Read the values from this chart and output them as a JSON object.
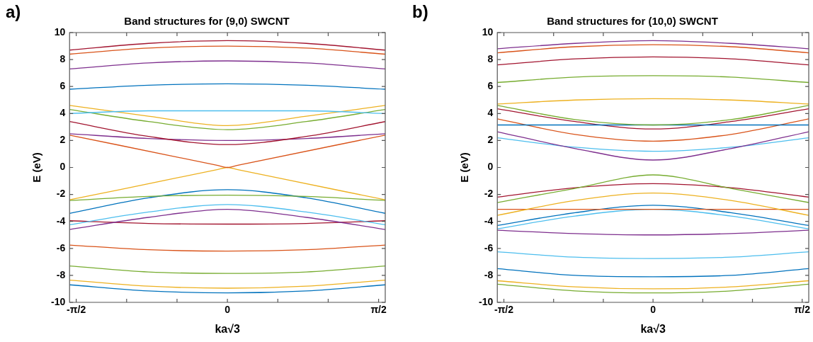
{
  "chart_data": [
    {
      "type": "line",
      "title": "Band structures for (9,0) SWCNT",
      "xlabel": "ka√3",
      "ylabel": "E (eV)",
      "annotations": [
        "a)"
      ],
      "x": [
        -1.64,
        -0.82,
        0,
        0.82,
        1.64
      ],
      "xlim": [
        -1.64,
        1.64
      ],
      "xticks": [
        {
          "value": -1.5708,
          "label": "-π/2"
        },
        {
          "value": -1.0472,
          "label": null
        },
        {
          "value": -0.5236,
          "label": null
        },
        0,
        {
          "value": 0.5236,
          "label": null
        },
        {
          "value": 1.0472,
          "label": null
        },
        {
          "value": 1.5708,
          "label": "π/2"
        }
      ],
      "ylim": [
        -10,
        10
      ],
      "yticks": [
        -10,
        -8,
        -6,
        -4,
        -2,
        0,
        2,
        4,
        6,
        8,
        10
      ],
      "legend": false,
      "series": [
        {
          "color": "#a2142f",
          "values": [
            8.7,
            9.2,
            9.4,
            9.2,
            8.7
          ]
        },
        {
          "color": "#d95319",
          "values": [
            8.4,
            8.85,
            9.0,
            8.85,
            8.4
          ]
        },
        {
          "color": "#7e2f8e",
          "values": [
            7.3,
            7.75,
            7.9,
            7.75,
            7.3
          ]
        },
        {
          "color": "#0072bd",
          "values": [
            5.8,
            6.1,
            6.2,
            6.1,
            5.8
          ]
        },
        {
          "color": "#4dbeee",
          "values": [
            4.0,
            4.2,
            4.2,
            4.2,
            4.0
          ]
        },
        {
          "color": "#edb120",
          "values": [
            4.6,
            3.8,
            3.1,
            3.8,
            4.6
          ]
        },
        {
          "color": "#77ac30",
          "values": [
            4.3,
            3.4,
            2.8,
            3.4,
            4.3
          ]
        },
        {
          "color": "#a2142f",
          "values": [
            3.4,
            2.3,
            1.7,
            2.3,
            3.4
          ]
        },
        {
          "color": "#7e2f8e",
          "values": [
            2.5,
            2.15,
            2.0,
            2.15,
            2.5
          ]
        },
        {
          "color": "#d95319",
          "x": [
            -1.64,
            -0.1,
            0,
            0.1,
            1.64
          ],
          "values": [
            2.4,
            0.15,
            0,
            0.15,
            2.4
          ]
        },
        {
          "color": "#edb120",
          "x": [
            -1.64,
            -0.1,
            0,
            0.1,
            1.64
          ],
          "values": [
            -2.4,
            -0.15,
            0,
            -0.15,
            -2.4
          ]
        },
        {
          "color": "#77ac30",
          "values": [
            -2.45,
            -2.15,
            -2.05,
            -2.15,
            -2.45
          ]
        },
        {
          "color": "#0072bd",
          "values": [
            -3.4,
            -2.25,
            -1.65,
            -2.25,
            -3.4
          ]
        },
        {
          "color": "#4dbeee",
          "values": [
            -4.25,
            -3.3,
            -2.75,
            -3.3,
            -4.25
          ]
        },
        {
          "color": "#7e2f8e",
          "values": [
            -4.6,
            -3.7,
            -3.1,
            -3.7,
            -4.6
          ]
        },
        {
          "color": "#a2142f",
          "values": [
            -3.95,
            -4.15,
            -4.2,
            -4.15,
            -3.95
          ]
        },
        {
          "color": "#d95319",
          "values": [
            -5.75,
            -6.1,
            -6.2,
            -6.1,
            -5.75
          ]
        },
        {
          "color": "#77ac30",
          "values": [
            -7.3,
            -7.75,
            -7.85,
            -7.75,
            -7.3
          ]
        },
        {
          "color": "#edb120",
          "values": [
            -8.35,
            -8.8,
            -8.95,
            -8.8,
            -8.35
          ]
        },
        {
          "color": "#0072bd",
          "values": [
            -8.7,
            -9.15,
            -9.3,
            -9.15,
            -8.7
          ]
        }
      ]
    },
    {
      "type": "line",
      "title": "Band structures for (10,0) SWCNT",
      "xlabel": "ka√3",
      "ylabel": "E (eV)",
      "annotations": [
        "b)"
      ],
      "x": [
        -1.64,
        -0.82,
        0,
        0.82,
        1.64
      ],
      "xlim": [
        -1.64,
        1.64
      ],
      "xticks": [
        {
          "value": -1.5708,
          "label": "-π/2"
        },
        {
          "value": -1.0472,
          "label": null
        },
        {
          "value": -0.5236,
          "label": null
        },
        0,
        {
          "value": 0.5236,
          "label": null
        },
        {
          "value": 1.0472,
          "label": null
        },
        {
          "value": 1.5708,
          "label": "π/2"
        }
      ],
      "ylim": [
        -10,
        10
      ],
      "yticks": [
        -10,
        -8,
        -6,
        -4,
        -2,
        0,
        2,
        4,
        6,
        8,
        10
      ],
      "legend": false,
      "series": [
        {
          "color": "#7e2f8e",
          "values": [
            8.8,
            9.2,
            9.4,
            9.2,
            8.8
          ]
        },
        {
          "color": "#d95319",
          "values": [
            8.5,
            8.95,
            9.1,
            8.95,
            8.5
          ]
        },
        {
          "color": "#a2142f",
          "values": [
            7.6,
            8.05,
            8.2,
            8.05,
            7.6
          ]
        },
        {
          "color": "#77ac30",
          "values": [
            6.3,
            6.7,
            6.8,
            6.7,
            6.3
          ]
        },
        {
          "color": "#edb120",
          "values": [
            4.7,
            5.0,
            5.1,
            5.0,
            4.7
          ]
        },
        {
          "color": "#77ac30",
          "values": [
            4.6,
            3.55,
            3.15,
            3.55,
            4.6
          ]
        },
        {
          "color": "#0072bd",
          "values": [
            3.15,
            3.15,
            3.15,
            3.15,
            3.15
          ]
        },
        {
          "color": "#a2142f",
          "values": [
            4.35,
            3.4,
            2.85,
            3.4,
            4.35
          ]
        },
        {
          "color": "#d95319",
          "values": [
            3.6,
            2.45,
            1.95,
            2.45,
            3.6
          ]
        },
        {
          "color": "#7e2f8e",
          "values": [
            2.65,
            1.4,
            0.55,
            1.4,
            2.65
          ]
        },
        {
          "color": "#4dbeee",
          "values": [
            2.2,
            1.5,
            1.2,
            1.5,
            2.2
          ]
        },
        {
          "color": "#77ac30",
          "values": [
            -2.6,
            -1.55,
            -0.55,
            -1.55,
            -2.6
          ]
        },
        {
          "color": "#a2142f",
          "values": [
            -2.2,
            -1.5,
            -1.2,
            -1.5,
            -2.2
          ]
        },
        {
          "color": "#edb120",
          "values": [
            -3.55,
            -2.45,
            -1.9,
            -2.45,
            -3.55
          ]
        },
        {
          "color": "#d95319",
          "values": [
            -3.1,
            -3.1,
            -3.1,
            -3.1,
            -3.1
          ]
        },
        {
          "color": "#0072bd",
          "values": [
            -4.3,
            -3.35,
            -2.8,
            -3.35,
            -4.3
          ]
        },
        {
          "color": "#4dbeee",
          "values": [
            -4.55,
            -3.6,
            -3.1,
            -3.6,
            -4.55
          ]
        },
        {
          "color": "#7e2f8e",
          "values": [
            -4.65,
            -4.9,
            -5.0,
            -4.9,
            -4.65
          ]
        },
        {
          "color": "#4dbeee",
          "values": [
            -6.25,
            -6.65,
            -6.75,
            -6.65,
            -6.25
          ]
        },
        {
          "color": "#0072bd",
          "values": [
            -7.5,
            -8.0,
            -8.1,
            -8.0,
            -7.5
          ]
        },
        {
          "color": "#edb120",
          "values": [
            -8.4,
            -8.85,
            -9.0,
            -8.85,
            -8.4
          ]
        },
        {
          "color": "#77ac30",
          "values": [
            -8.65,
            -9.15,
            -9.3,
            -9.15,
            -8.65
          ]
        }
      ]
    }
  ]
}
